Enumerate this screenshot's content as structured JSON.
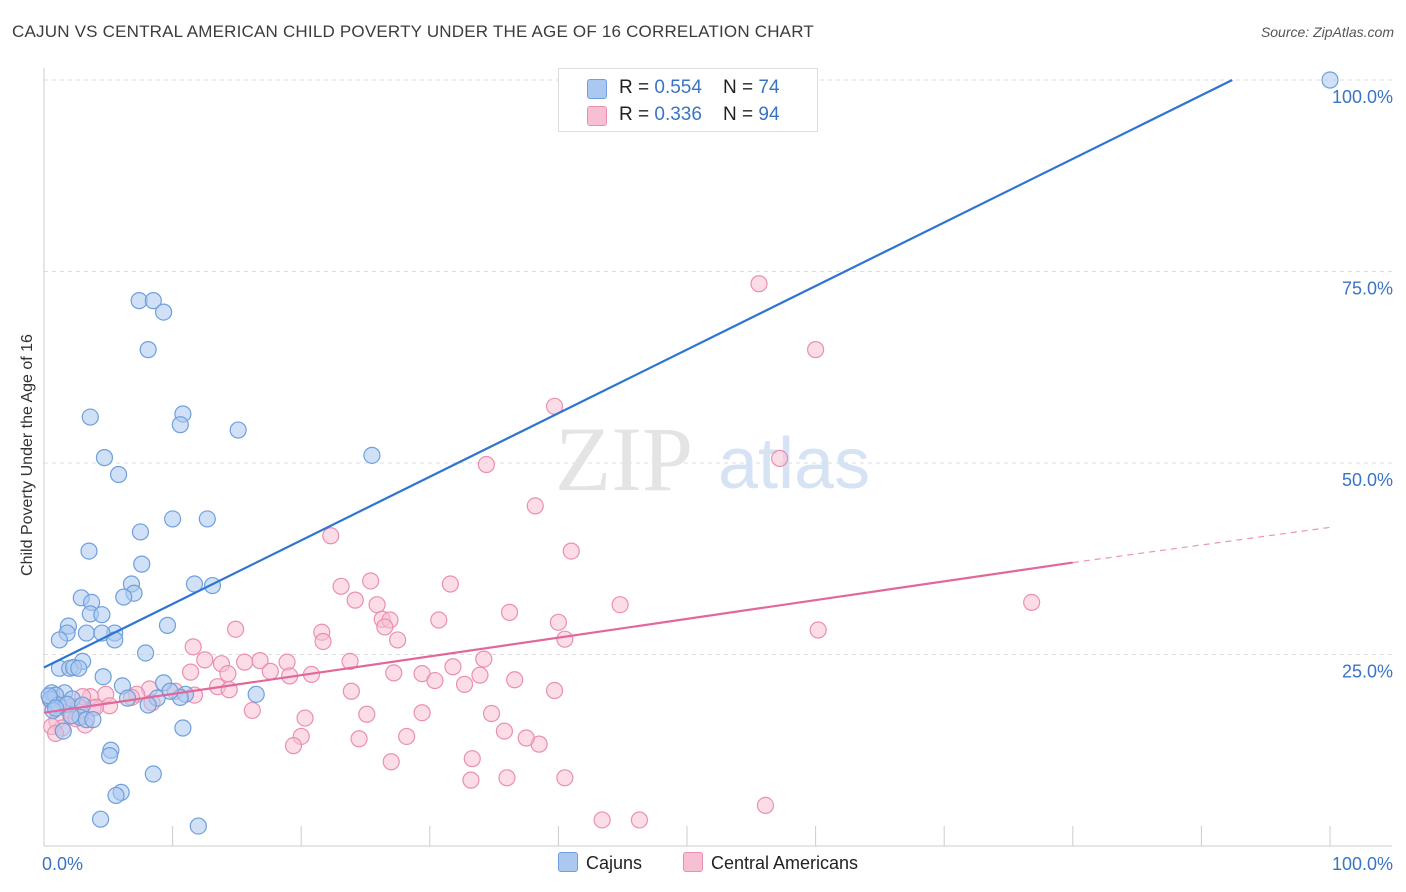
{
  "header": {
    "title": "CAJUN VS CENTRAL AMERICAN CHILD POVERTY UNDER THE AGE OF 16 CORRELATION CHART",
    "source": "Source: ZipAtlas.com"
  },
  "watermark": {
    "zip": "ZIP",
    "atlas": "atlas"
  },
  "legend": {
    "cajuns": {
      "r_label": "R = ",
      "r_value": "0.554",
      "n_label": "N = ",
      "n_value": "74"
    },
    "central": {
      "r_label": "R = ",
      "r_value": "0.336",
      "n_label": "N = ",
      "n_value": "94"
    }
  },
  "bottom_legend": {
    "cajuns": "Cajuns",
    "central": "Central Americans"
  },
  "colors": {
    "cajun_fill": "#aac8f0",
    "cajun_stroke": "#6f9fdc",
    "cajun_line": "#2f74d0",
    "central_fill": "#f7bfd3",
    "central_stroke": "#eb8fb0",
    "central_line": "#e0689a",
    "axis_text": "#3a74c4",
    "grid": "#dddddd"
  },
  "chart_data": {
    "type": "scatter",
    "title": "CAJUN VS CENTRAL AMERICAN CHILD POVERTY UNDER THE AGE OF 16 CORRELATION CHART",
    "xlabel": "",
    "ylabel": "Child Poverty Under the Age of 16",
    "xlim": [
      0,
      100
    ],
    "ylim": [
      0,
      100
    ],
    "x_tick_labels": [
      "0.0%",
      "100.0%"
    ],
    "y_tick_labels": [
      "25.0%",
      "50.0%",
      "75.0%",
      "100.0%"
    ],
    "y_ticks": [
      25,
      50,
      75,
      100
    ],
    "grid": true,
    "legend_position": "top-center",
    "series": [
      {
        "name": "Cajuns",
        "trend": {
          "x1": 0,
          "y1": 23.3,
          "x2": 92.4,
          "y2": 100
        },
        "points": [
          [
            7.4,
            71.2
          ],
          [
            8.5,
            71.2
          ],
          [
            9.3,
            69.7
          ],
          [
            8.1,
            64.8
          ],
          [
            3.6,
            56.0
          ],
          [
            10.8,
            56.4
          ],
          [
            10.6,
            55.0
          ],
          [
            15.1,
            54.3
          ],
          [
            25.5,
            51.0
          ],
          [
            4.7,
            50.7
          ],
          [
            5.8,
            48.5
          ],
          [
            10.0,
            42.7
          ],
          [
            12.7,
            42.7
          ],
          [
            7.5,
            41.0
          ],
          [
            3.5,
            38.5
          ],
          [
            7.6,
            36.8
          ],
          [
            6.8,
            34.2
          ],
          [
            11.7,
            34.2
          ],
          [
            13.1,
            34.0
          ],
          [
            7.0,
            33.0
          ],
          [
            6.2,
            32.5
          ],
          [
            2.9,
            32.4
          ],
          [
            3.7,
            31.8
          ],
          [
            3.6,
            30.3
          ],
          [
            4.5,
            30.2
          ],
          [
            1.9,
            28.7
          ],
          [
            1.8,
            27.8
          ],
          [
            9.6,
            28.8
          ],
          [
            3.3,
            27.8
          ],
          [
            5.5,
            27.8
          ],
          [
            4.5,
            27.8
          ],
          [
            1.2,
            26.9
          ],
          [
            5.5,
            26.9
          ],
          [
            7.9,
            25.2
          ],
          [
            3.0,
            24.1
          ],
          [
            1.2,
            23.2
          ],
          [
            2.0,
            23.2
          ],
          [
            2.3,
            23.3
          ],
          [
            2.7,
            23.2
          ],
          [
            4.6,
            22.1
          ],
          [
            9.3,
            21.3
          ],
          [
            6.1,
            20.9
          ],
          [
            0.6,
            20.0
          ],
          [
            1.6,
            20.0
          ],
          [
            0.9,
            19.7
          ],
          [
            11.0,
            19.8
          ],
          [
            16.5,
            19.8
          ],
          [
            0.5,
            19.2
          ],
          [
            2.2,
            19.2
          ],
          [
            6.5,
            19.3
          ],
          [
            8.8,
            19.3
          ],
          [
            10.6,
            19.4
          ],
          [
            1.1,
            18.4
          ],
          [
            1.8,
            18.5
          ],
          [
            3.0,
            18.4
          ],
          [
            8.1,
            18.4
          ],
          [
            0.7,
            17.7
          ],
          [
            2.8,
            16.8
          ],
          [
            3.3,
            16.5
          ],
          [
            3.8,
            16.5
          ],
          [
            1.5,
            15.0
          ],
          [
            10.8,
            15.4
          ],
          [
            5.2,
            12.5
          ],
          [
            5.1,
            11.8
          ],
          [
            8.5,
            9.4
          ],
          [
            6.0,
            7.0
          ],
          [
            5.6,
            6.6
          ],
          [
            4.4,
            3.5
          ],
          [
            12.0,
            2.6
          ],
          [
            100.0,
            100.0
          ],
          [
            0.4,
            19.6
          ],
          [
            0.9,
            18.0
          ],
          [
            2.1,
            17.0
          ],
          [
            9.8,
            20.2
          ]
        ]
      },
      {
        "name": "Central Americans",
        "trend": {
          "x1": 0,
          "y1": 17.4,
          "x2": 80.0,
          "y2": 37.0,
          "dash_x2": 100,
          "dash_y2": 41.6
        },
        "points": [
          [
            60.0,
            64.8
          ],
          [
            55.6,
            73.4
          ],
          [
            39.7,
            57.4
          ],
          [
            34.4,
            49.8
          ],
          [
            57.2,
            50.6
          ],
          [
            38.2,
            44.4
          ],
          [
            41.0,
            38.5
          ],
          [
            22.3,
            40.5
          ],
          [
            25.4,
            34.6
          ],
          [
            23.1,
            33.9
          ],
          [
            31.6,
            34.2
          ],
          [
            24.2,
            32.1
          ],
          [
            25.9,
            31.5
          ],
          [
            44.8,
            31.5
          ],
          [
            36.2,
            30.5
          ],
          [
            26.3,
            29.6
          ],
          [
            26.9,
            29.5
          ],
          [
            30.7,
            29.5
          ],
          [
            40.0,
            29.2
          ],
          [
            26.5,
            28.6
          ],
          [
            14.9,
            28.3
          ],
          [
            21.6,
            27.9
          ],
          [
            40.5,
            27.0
          ],
          [
            21.7,
            26.7
          ],
          [
            27.5,
            26.9
          ],
          [
            11.6,
            26.0
          ],
          [
            34.2,
            24.4
          ],
          [
            23.8,
            24.1
          ],
          [
            12.5,
            24.3
          ],
          [
            16.8,
            24.2
          ],
          [
            18.9,
            24.0
          ],
          [
            31.8,
            23.4
          ],
          [
            15.6,
            24.0
          ],
          [
            13.8,
            23.8
          ],
          [
            11.4,
            22.7
          ],
          [
            17.6,
            22.8
          ],
          [
            27.2,
            22.6
          ],
          [
            29.4,
            22.5
          ],
          [
            32.7,
            21.1
          ],
          [
            14.3,
            22.5
          ],
          [
            20.8,
            22.4
          ],
          [
            19.1,
            22.2
          ],
          [
            30.4,
            21.6
          ],
          [
            33.9,
            22.3
          ],
          [
            36.6,
            21.7
          ],
          [
            13.5,
            20.8
          ],
          [
            14.4,
            20.4
          ],
          [
            23.9,
            20.2
          ],
          [
            8.2,
            20.5
          ],
          [
            39.7,
            20.3
          ],
          [
            10.2,
            20.2
          ],
          [
            7.2,
            19.8
          ],
          [
            6.8,
            19.4
          ],
          [
            4.8,
            19.8
          ],
          [
            3.6,
            19.5
          ],
          [
            3.0,
            19.5
          ],
          [
            11.7,
            19.7
          ],
          [
            0.5,
            19.0
          ],
          [
            1.6,
            18.6
          ],
          [
            8.4,
            18.7
          ],
          [
            3.8,
            18.0
          ],
          [
            5.1,
            18.3
          ],
          [
            2.0,
            17.7
          ],
          [
            2.7,
            18.2
          ],
          [
            16.2,
            17.7
          ],
          [
            20.3,
            16.7
          ],
          [
            25.1,
            17.2
          ],
          [
            34.8,
            17.3
          ],
          [
            29.4,
            17.4
          ],
          [
            1.0,
            16.3
          ],
          [
            2.2,
            17.0
          ],
          [
            1.4,
            15.4
          ],
          [
            0.6,
            15.6
          ],
          [
            2.5,
            16.6
          ],
          [
            4.0,
            18.1
          ],
          [
            3.2,
            15.8
          ],
          [
            0.9,
            14.7
          ],
          [
            24.5,
            14.0
          ],
          [
            28.2,
            14.3
          ],
          [
            35.8,
            15.0
          ],
          [
            27.0,
            11.0
          ],
          [
            33.3,
            11.4
          ],
          [
            38.5,
            13.3
          ],
          [
            37.5,
            14.1
          ],
          [
            20.0,
            14.3
          ],
          [
            19.4,
            13.1
          ],
          [
            33.2,
            8.6
          ],
          [
            36.0,
            8.9
          ],
          [
            40.5,
            8.9
          ],
          [
            56.1,
            5.3
          ],
          [
            43.4,
            3.4
          ],
          [
            46.3,
            3.4
          ],
          [
            76.8,
            31.8
          ],
          [
            60.2,
            28.2
          ]
        ]
      }
    ]
  }
}
